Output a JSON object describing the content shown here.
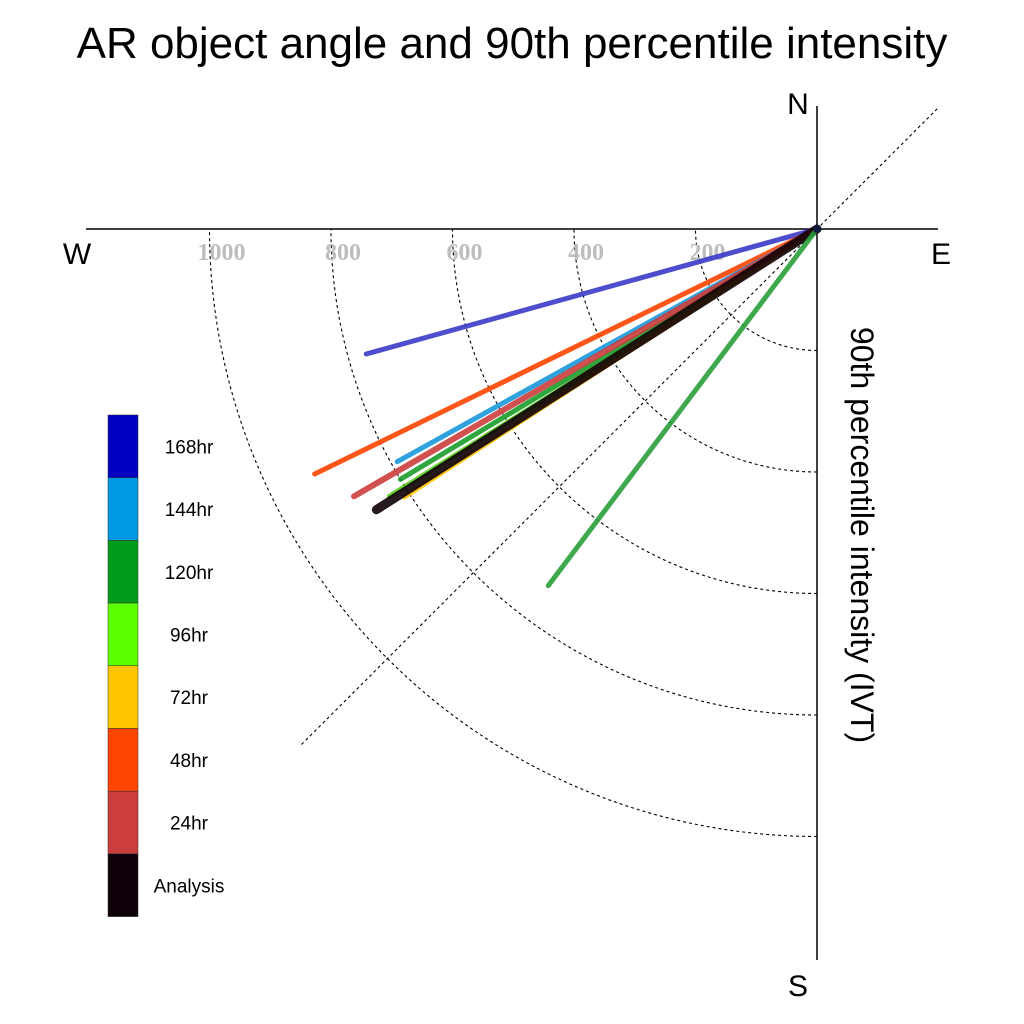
{
  "chart_data": {
    "type": "polar-vector",
    "title": "AR object angle and 90th percentile intensity",
    "radial_label": "90th percentile intensity (IVT)",
    "radial_ticks": [
      200,
      400,
      600,
      800,
      1000
    ],
    "radial_tick_labels": [
      "200",
      "400",
      "600",
      "800",
      "1000"
    ],
    "rmax": 1200,
    "compass": {
      "n": "N",
      "s": "S",
      "e": "E",
      "w": "W"
    },
    "angle_units": "degrees clockwise from north",
    "legend_position": "left",
    "legend": [
      {
        "label": "168hr",
        "color": "#0000c0"
      },
      {
        "label": "144hr",
        "color": "#0098e0"
      },
      {
        "label": "120hr",
        "color": "#009c1c"
      },
      {
        "label": "96hr",
        "color": "#5cff00"
      },
      {
        "label": "72hr",
        "color": "#ffc600"
      },
      {
        "label": "48hr",
        "color": "#ff4500"
      },
      {
        "label": "24hr",
        "color": "#cc3d3d"
      },
      {
        "label": "Analysis",
        "color": "#0e0008"
      }
    ],
    "series": [
      {
        "name": "168hr",
        "color": "#3a3ac8",
        "angle": 254.5,
        "intensity": 770,
        "width": 5
      },
      {
        "name": "48hr",
        "color": "#ff4500",
        "angle": 244.0,
        "intensity": 920,
        "width": 5
      },
      {
        "name": "144hr",
        "color": "#1a98da",
        "angle": 241.0,
        "intensity": 790,
        "width": 5
      },
      {
        "name": "120hr",
        "color": "#1a9c2a",
        "angle": 239.0,
        "intensity": 800,
        "width": 5
      },
      {
        "name": "96hr",
        "color": "#5cd020",
        "angle": 238.0,
        "intensity": 830,
        "width": 5
      },
      {
        "name": "72hr",
        "color": "#ffc600",
        "angle": 237.0,
        "intensity": 810,
        "width": 5
      },
      {
        "name": "24hr",
        "color": "#cc3d3d",
        "angle": 240.0,
        "intensity": 880,
        "width": 6
      },
      {
        "name": "Analysis",
        "color": "#0e0008",
        "angle": 237.5,
        "intensity": 860,
        "width": 9
      },
      {
        "name": "120hr",
        "color": "#2a9e3a",
        "angle": 217.0,
        "intensity": 735,
        "width": 5
      }
    ]
  }
}
